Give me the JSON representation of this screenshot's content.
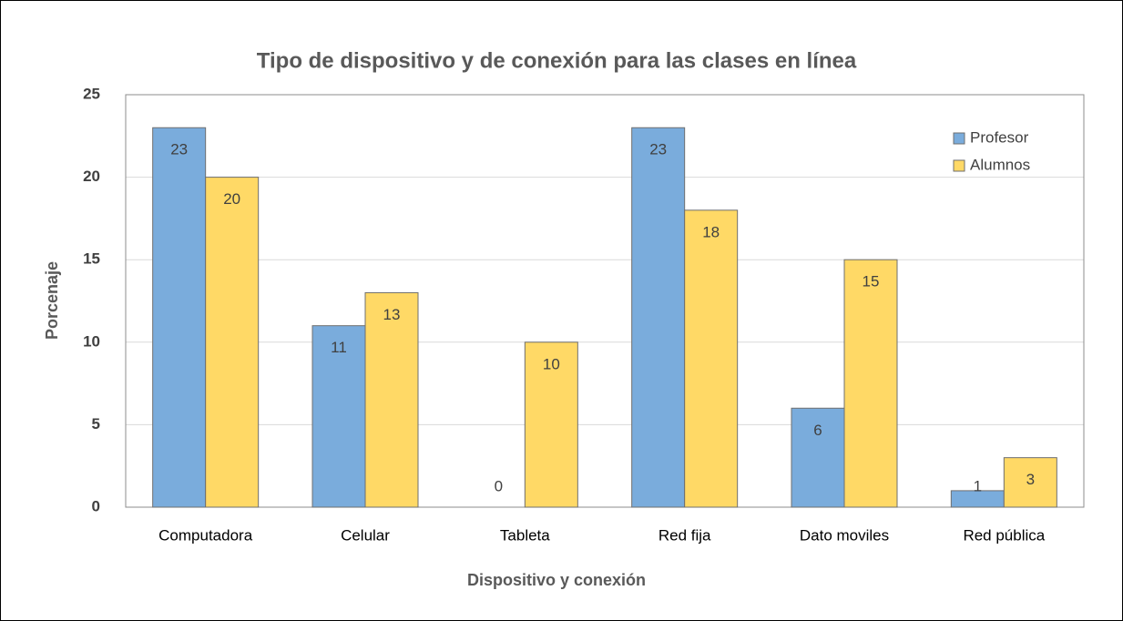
{
  "chart_data": {
    "type": "bar",
    "title": "Tipo de dispositivo y de conexión para las clases en línea",
    "xlabel": "Dispositivo y conexión",
    "ylabel": "Porcenaje",
    "categories": [
      "Computadora",
      "Celular",
      "Tableta",
      "Red fija",
      "Dato moviles",
      "Red pública"
    ],
    "series": [
      {
        "name": "Profesor",
        "color": "#7aacdc",
        "values": [
          23,
          11,
          0,
          23,
          6,
          1
        ]
      },
      {
        "name": "Alumnos",
        "color": "#ffd966",
        "values": [
          20,
          13,
          10,
          18,
          15,
          3
        ]
      }
    ],
    "ylim": [
      0,
      25
    ],
    "yticks": [
      0,
      5,
      10,
      15,
      20,
      25
    ],
    "grid": true,
    "legend": "upper right"
  }
}
